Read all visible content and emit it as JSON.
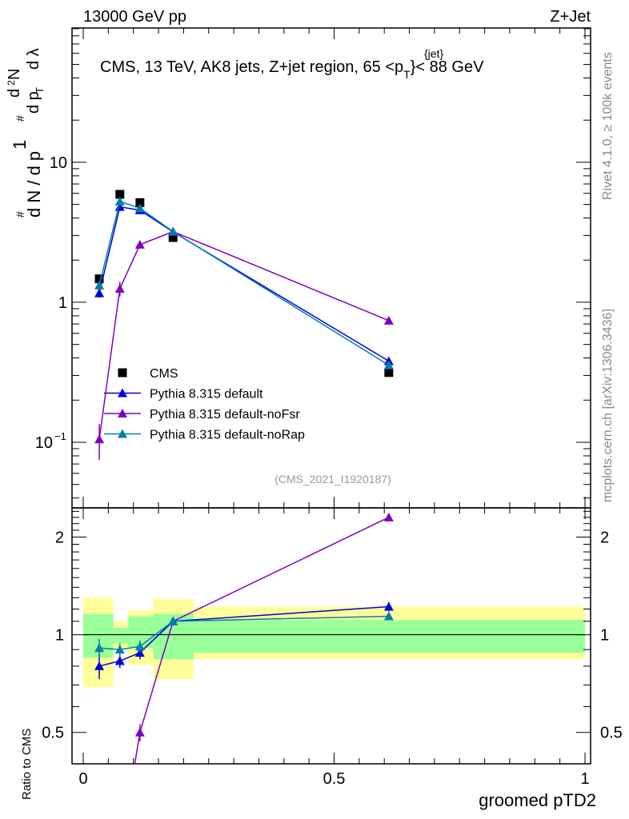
{
  "chart_data": {
    "type": "line",
    "header_left": "13000 GeV pp",
    "header_right": "Z+Jet",
    "title": "CMS, 13 TeV, AK8 jets, Z+jet region, 65 <p",
    "title_sup": "{jet}",
    "title_sub": "T",
    "title_end": "}< 88 GeV",
    "ylabel": "1/N dN/dλ",
    "ylabel_parts": [
      "#",
      "1",
      "d N / d p",
      "T",
      "#",
      "d",
      "2",
      "N",
      "d p",
      "T",
      "d λ"
    ],
    "ratio_ylabel": "Ratio to CMS",
    "xlabel": "groomed pTD2",
    "side_text_top": "Rivet 4.1.0, ≥ 100k events",
    "side_text_bottom": "mcplots.cern.ch [arXiv:1306.3436]",
    "analysis_id": "(CMS_2021_I1920187)",
    "xlim": [
      0,
      1
    ],
    "ylim": [
      0.034,
      91
    ],
    "ratio_ylim": [
      0.4,
      2.46
    ],
    "yscale": "log",
    "ratio_yscale": "log",
    "xticks": [
      {
        "v": 0,
        "label": "0"
      },
      {
        "v": 0.5,
        "label": "0.5"
      },
      {
        "v": 1,
        "label": "1"
      }
    ],
    "yticks": [
      {
        "v": 0.1,
        "label": "10",
        "sup": "−1"
      },
      {
        "v": 1,
        "label": "1"
      },
      {
        "v": 10,
        "label": "10"
      }
    ],
    "ratio_yticks": [
      {
        "v": 0.5,
        "label": "0.5"
      },
      {
        "v": 1,
        "label": "1"
      },
      {
        "v": 2,
        "label": "2"
      }
    ],
    "x": [
      0.032,
      0.073,
      0.113,
      0.179,
      0.609
    ],
    "bin_edges": [
      0,
      0.06,
      0.09,
      0.14,
      0.22,
      1
    ],
    "band_inner": [
      [
        0.85,
        1.16
      ],
      [
        0.94,
        1.05
      ],
      [
        0.91,
        1.14
      ],
      [
        0.84,
        1.16
      ],
      [
        0.88,
        1.11
      ]
    ],
    "band_outer": [
      [
        0.69,
        1.3
      ],
      [
        0.9,
        1.1
      ],
      [
        0.81,
        1.19
      ],
      [
        0.73,
        1.29
      ],
      [
        0.84,
        1.22
      ]
    ],
    "legend_position": "center-left",
    "series": [
      {
        "name": "CMS",
        "color": "#000000",
        "marker": "square",
        "line": false,
        "values": [
          1.47,
          5.9,
          5.15,
          2.9,
          0.315
        ],
        "errors": [
          0.05,
          0.1,
          0.1,
          0.05,
          0.01
        ],
        "ratio": [
          1,
          1,
          1,
          1,
          1
        ]
      },
      {
        "name": "Pythia 8.315 default",
        "color": "#0000dd",
        "marker": "triangle",
        "line": true,
        "values": [
          1.16,
          4.8,
          4.55,
          3.18,
          0.38
        ],
        "errors": [
          0.08,
          0.15,
          0.12,
          0.05,
          0.015
        ],
        "ratio": [
          0.8,
          0.83,
          0.88,
          1.1,
          1.22
        ],
        "ratio_err": [
          0.07,
          0.04,
          0.04,
          0.03,
          0.04
        ]
      },
      {
        "name": "Pythia 8.315 default-noFsr",
        "color": "#8000c0",
        "marker": "triangle",
        "line": true,
        "values": [
          0.105,
          1.25,
          2.58,
          3.2,
          0.74
        ],
        "errors": [
          0.03,
          0.15,
          0.12,
          0.05,
          0.02
        ],
        "ratio": [
          0.07,
          0.21,
          0.5,
          1.1,
          2.3
        ],
        "ratio_err": [
          0.02,
          0.03,
          0.03,
          0.03,
          0.05
        ]
      },
      {
        "name": "Pythia 8.315 default-noRap",
        "color": "#0080a8",
        "marker": "triangle",
        "line": true,
        "values": [
          1.32,
          5.25,
          4.7,
          3.2,
          0.355
        ],
        "errors": [
          0.08,
          0.15,
          0.12,
          0.05,
          0.015
        ],
        "ratio": [
          0.91,
          0.9,
          0.92,
          1.1,
          1.14
        ],
        "ratio_err": [
          0.06,
          0.04,
          0.04,
          0.03,
          0.03
        ]
      }
    ]
  }
}
